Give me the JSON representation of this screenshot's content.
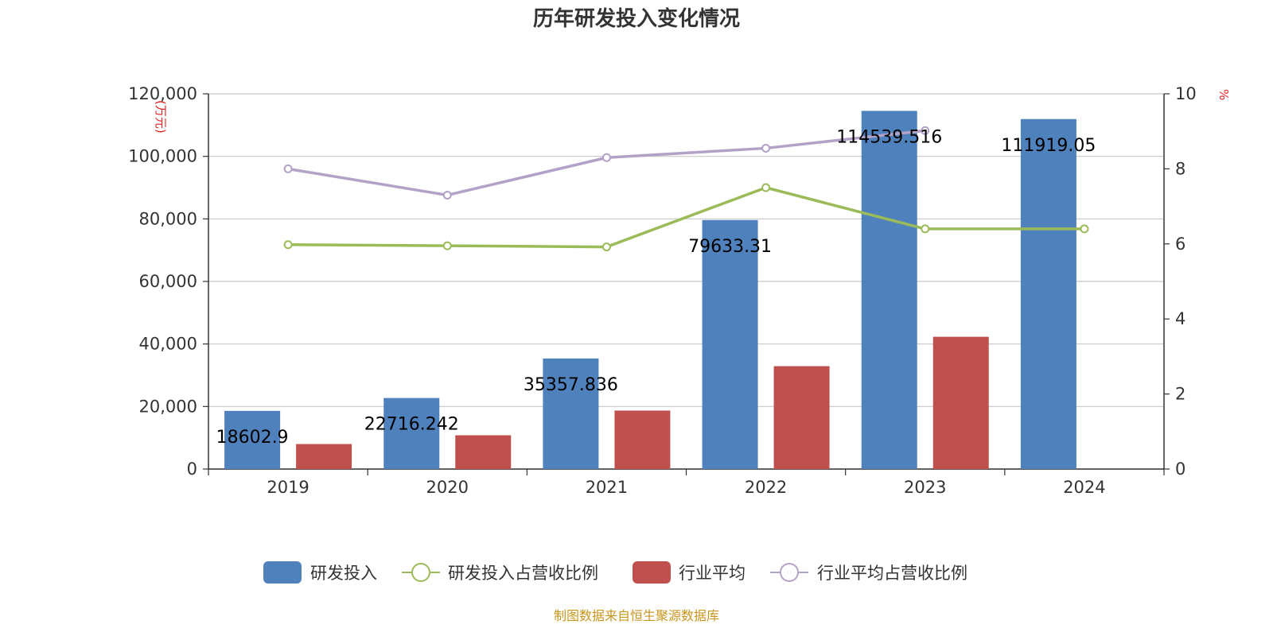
{
  "chart_data": {
    "type": "bar",
    "title": "历年研发投入变化情况",
    "categories": [
      "2019",
      "2020",
      "2021",
      "2022",
      "2023",
      "2024"
    ],
    "y_left": {
      "label": "(万元)",
      "ticks": [
        "0",
        "20,000",
        "40,000",
        "60,000",
        "80,000",
        "100,000",
        "120,000"
      ],
      "ylim": [
        0,
        120000
      ]
    },
    "y_right": {
      "label": "%",
      "ticks": [
        "0",
        "2",
        "4",
        "6",
        "8",
        "10"
      ],
      "ylim": [
        0,
        10
      ]
    },
    "grid": true,
    "legend_position": "bottom",
    "series": [
      {
        "name": "研发投入",
        "type": "bar",
        "axis": "left",
        "color": "#4f81bd",
        "values": [
          18602.9,
          22716.242,
          35357.836,
          79633.31,
          114539.516,
          111919.05
        ],
        "labels": [
          "18602.9",
          "22716.242",
          "35357.836",
          "79633.31",
          "114539.516",
          "111919.05"
        ]
      },
      {
        "name": "研发投入占营收比例",
        "type": "line",
        "axis": "right",
        "color": "#9bbb59",
        "values": [
          5.98,
          5.95,
          5.92,
          7.5,
          6.4,
          6.4
        ]
      },
      {
        "name": "行业平均",
        "type": "bar",
        "axis": "left",
        "color": "#c0504d",
        "values": [
          8000,
          10800,
          18700,
          32900,
          42300,
          null
        ]
      },
      {
        "name": "行业平均占营收比例",
        "type": "line",
        "axis": "right",
        "color": "#b3a2c7",
        "values": [
          8.0,
          7.3,
          8.3,
          8.55,
          9.02,
          null
        ]
      }
    ]
  },
  "source": "制图数据来自恒生聚源数据库"
}
